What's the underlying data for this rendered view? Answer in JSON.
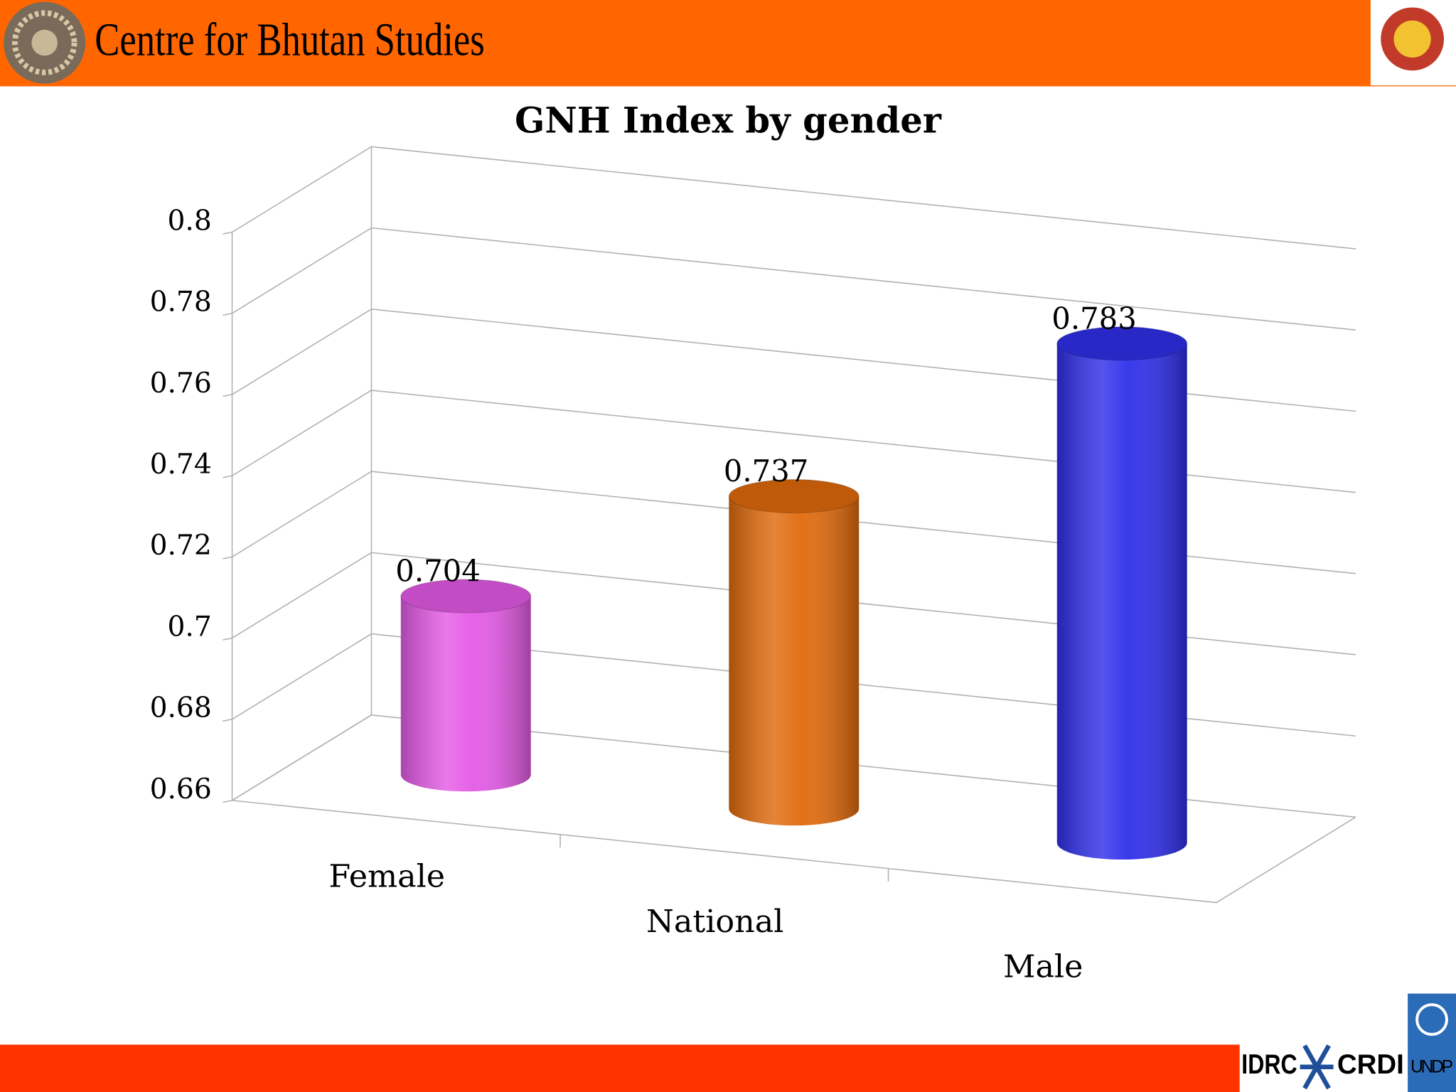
{
  "header": {
    "title": "Centre for Bhutan Studies"
  },
  "footer": {
    "logos": [
      "IDRC",
      "CRDI",
      "UNDP"
    ]
  },
  "chart_data": {
    "type": "bar",
    "title": "GNH Index by gender",
    "categories": [
      "Female",
      "National",
      "Male"
    ],
    "values": [
      0.704,
      0.737,
      0.783
    ],
    "colors": [
      "#e45ae6",
      "#e06a0c",
      "#2f2fea"
    ],
    "ylim": [
      0.66,
      0.8
    ],
    "yticks": [
      0.66,
      0.68,
      0.7,
      0.72,
      0.74,
      0.76,
      0.78,
      0.8
    ],
    "grid": true
  }
}
